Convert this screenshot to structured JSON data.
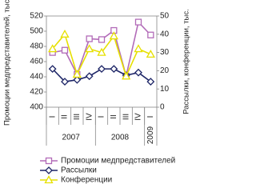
{
  "chart_data": {
    "type": "line",
    "y_label": "Промоции медпредставителей, тыс.",
    "y2_label": "Рассылки, конференции, тыс.",
    "categories": [
      "I",
      "II",
      "III",
      "IV",
      "I",
      "II",
      "III",
      "IV",
      "I"
    ],
    "category_groups": [
      {
        "label": "2007",
        "count": 4
      },
      {
        "label": "2008",
        "count": 4
      },
      {
        "label": "2009",
        "count": 1
      }
    ],
    "ylim": [
      400,
      520
    ],
    "yticks": [
      400,
      420,
      440,
      460,
      480,
      500,
      520
    ],
    "y2lim": [
      0,
      50
    ],
    "y2ticks": [
      0,
      10,
      20,
      30,
      40,
      50
    ],
    "series": [
      {
        "name": "Промоции медпредставителей",
        "color": "#b26bb8",
        "marker": "square",
        "values": [
          472,
          475,
          443,
          490,
          489,
          501,
          441,
          512,
          495
        ]
      },
      {
        "name": "Рассылки",
        "color": "#1c2466",
        "marker": "diamond",
        "axis": "y2",
        "values": [
          21,
          14,
          15,
          17,
          21,
          21,
          17.5,
          19,
          14
        ]
      },
      {
        "name": "Конференции",
        "color": "#e6e000",
        "marker": "triangle",
        "axis": "y2",
        "values": [
          32,
          40,
          18,
          32,
          30,
          39,
          17,
          32,
          29
        ]
      }
    ]
  }
}
